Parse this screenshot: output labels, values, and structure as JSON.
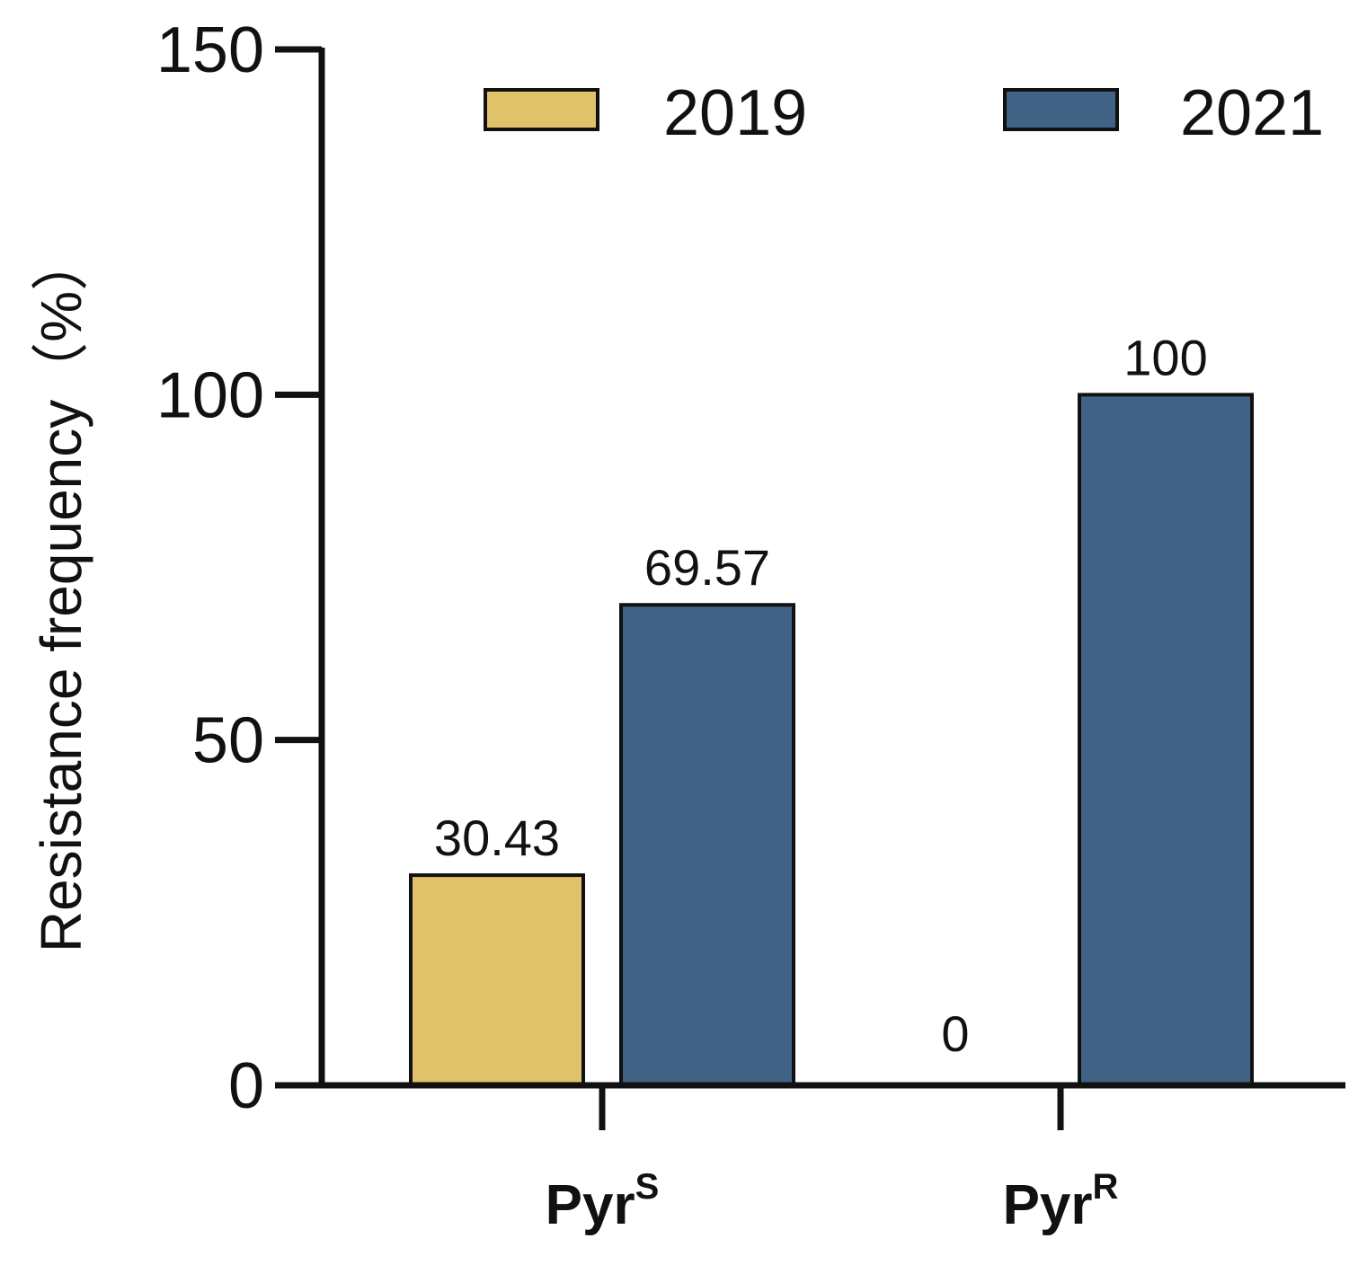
{
  "chart_data": {
    "type": "bar",
    "categories": [
      {
        "base": "Pyr",
        "sup": "S"
      },
      {
        "base": "Pyr",
        "sup": "R"
      }
    ],
    "series": [
      {
        "name": "2019",
        "color": "#E0C26A",
        "values": [
          30.43,
          0
        ],
        "labels": [
          "30.43",
          "0"
        ]
      },
      {
        "name": "2021",
        "color": "#406385",
        "values": [
          69.57,
          100
        ],
        "labels": [
          "69.57",
          "100"
        ]
      }
    ],
    "ylabel": "Resistance frequency（%）",
    "xlabel": "",
    "ylim": [
      0,
      150
    ],
    "yticks": [
      0,
      50,
      100,
      150
    ],
    "legend_position": "top-right",
    "grid": false
  }
}
